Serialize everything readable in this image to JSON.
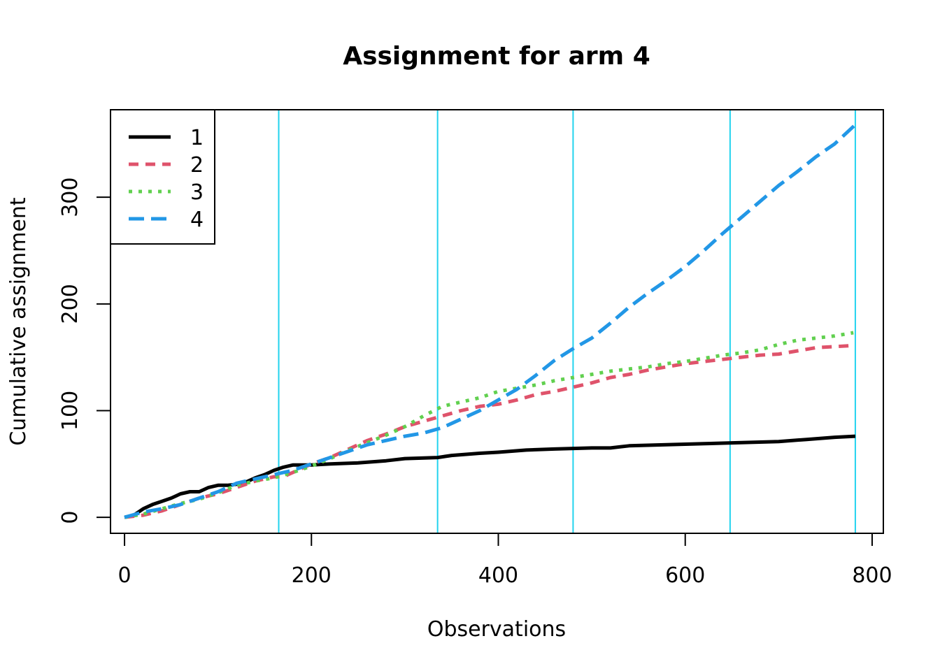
{
  "chart_data": {
    "type": "line",
    "title": "Assignment for arm 4",
    "xlabel": "Observations",
    "ylabel": "Cumulative assignment",
    "xlim": [
      -15,
      812
    ],
    "ylim": [
      -15,
      382
    ],
    "x_ticks": [
      0,
      200,
      400,
      600,
      800
    ],
    "y_ticks": [
      0,
      100,
      200,
      300
    ],
    "x_tick_labels": [
      "0",
      "200",
      "400",
      "600",
      "800"
    ],
    "y_tick_labels": [
      "0",
      "100",
      "200",
      "300"
    ],
    "grid": false,
    "legend_position": "top-left",
    "vlines": {
      "x": [
        165,
        335,
        480,
        648,
        782
      ],
      "color": "#22D3EE"
    },
    "series": [
      {
        "name": "1",
        "color": "#000000",
        "dash": "solid",
        "points": [
          [
            0,
            0
          ],
          [
            10,
            2
          ],
          [
            20,
            8
          ],
          [
            30,
            12
          ],
          [
            40,
            15
          ],
          [
            50,
            18
          ],
          [
            60,
            22
          ],
          [
            70,
            24
          ],
          [
            80,
            24
          ],
          [
            90,
            28
          ],
          [
            100,
            30
          ],
          [
            110,
            30
          ],
          [
            120,
            31
          ],
          [
            130,
            33
          ],
          [
            140,
            37
          ],
          [
            150,
            40
          ],
          [
            160,
            44
          ],
          [
            170,
            47
          ],
          [
            180,
            49
          ],
          [
            200,
            49
          ],
          [
            220,
            50
          ],
          [
            250,
            51
          ],
          [
            280,
            53
          ],
          [
            300,
            55
          ],
          [
            335,
            56
          ],
          [
            350,
            58
          ],
          [
            380,
            60
          ],
          [
            400,
            61
          ],
          [
            430,
            63
          ],
          [
            460,
            64
          ],
          [
            500,
            65
          ],
          [
            520,
            65
          ],
          [
            540,
            67
          ],
          [
            580,
            68
          ],
          [
            620,
            69
          ],
          [
            660,
            70
          ],
          [
            700,
            71
          ],
          [
            730,
            73
          ],
          [
            760,
            75
          ],
          [
            782,
            76
          ]
        ]
      },
      {
        "name": "2",
        "color": "#DF536B",
        "dash": "dashed",
        "points": [
          [
            0,
            0
          ],
          [
            20,
            2
          ],
          [
            40,
            6
          ],
          [
            60,
            12
          ],
          [
            80,
            18
          ],
          [
            100,
            22
          ],
          [
            120,
            28
          ],
          [
            140,
            34
          ],
          [
            160,
            38
          ],
          [
            170,
            38
          ],
          [
            180,
            42
          ],
          [
            200,
            50
          ],
          [
            220,
            56
          ],
          [
            240,
            64
          ],
          [
            260,
            72
          ],
          [
            280,
            78
          ],
          [
            300,
            85
          ],
          [
            320,
            90
          ],
          [
            340,
            95
          ],
          [
            360,
            100
          ],
          [
            380,
            104
          ],
          [
            400,
            106
          ],
          [
            420,
            110
          ],
          [
            440,
            115
          ],
          [
            460,
            118
          ],
          [
            480,
            122
          ],
          [
            500,
            126
          ],
          [
            520,
            131
          ],
          [
            540,
            134
          ],
          [
            560,
            138
          ],
          [
            580,
            141
          ],
          [
            600,
            144
          ],
          [
            620,
            146
          ],
          [
            640,
            148
          ],
          [
            660,
            150
          ],
          [
            680,
            152
          ],
          [
            700,
            153
          ],
          [
            720,
            156
          ],
          [
            740,
            159
          ],
          [
            760,
            160
          ],
          [
            780,
            161
          ]
        ]
      },
      {
        "name": "3",
        "color": "#61D04F",
        "dash": "dotted",
        "points": [
          [
            0,
            0
          ],
          [
            20,
            3
          ],
          [
            40,
            8
          ],
          [
            60,
            13
          ],
          [
            80,
            17
          ],
          [
            100,
            23
          ],
          [
            120,
            30
          ],
          [
            140,
            34
          ],
          [
            160,
            37
          ],
          [
            180,
            42
          ],
          [
            200,
            48
          ],
          [
            220,
            55
          ],
          [
            240,
            63
          ],
          [
            260,
            70
          ],
          [
            280,
            77
          ],
          [
            300,
            85
          ],
          [
            320,
            95
          ],
          [
            340,
            104
          ],
          [
            360,
            108
          ],
          [
            380,
            112
          ],
          [
            400,
            118
          ],
          [
            420,
            121
          ],
          [
            440,
            124
          ],
          [
            460,
            128
          ],
          [
            480,
            131
          ],
          [
            500,
            134
          ],
          [
            520,
            137
          ],
          [
            540,
            139
          ],
          [
            560,
            141
          ],
          [
            580,
            144
          ],
          [
            600,
            146
          ],
          [
            620,
            149
          ],
          [
            640,
            152
          ],
          [
            660,
            154
          ],
          [
            680,
            157
          ],
          [
            700,
            162
          ],
          [
            720,
            166
          ],
          [
            740,
            168
          ],
          [
            760,
            170
          ],
          [
            780,
            173
          ]
        ]
      },
      {
        "name": "4",
        "color": "#2297E6",
        "dash": "longdash",
        "points": [
          [
            0,
            0
          ],
          [
            20,
            5
          ],
          [
            40,
            8
          ],
          [
            60,
            12
          ],
          [
            80,
            18
          ],
          [
            100,
            24
          ],
          [
            120,
            32
          ],
          [
            140,
            36
          ],
          [
            160,
            40
          ],
          [
            180,
            44
          ],
          [
            200,
            50
          ],
          [
            220,
            56
          ],
          [
            240,
            62
          ],
          [
            260,
            68
          ],
          [
            280,
            72
          ],
          [
            300,
            76
          ],
          [
            320,
            79
          ],
          [
            340,
            84
          ],
          [
            360,
            92
          ],
          [
            380,
            100
          ],
          [
            400,
            110
          ],
          [
            420,
            120
          ],
          [
            440,
            133
          ],
          [
            460,
            147
          ],
          [
            480,
            158
          ],
          [
            500,
            168
          ],
          [
            520,
            182
          ],
          [
            540,
            197
          ],
          [
            560,
            210
          ],
          [
            580,
            222
          ],
          [
            600,
            235
          ],
          [
            620,
            250
          ],
          [
            640,
            266
          ],
          [
            660,
            281
          ],
          [
            680,
            296
          ],
          [
            700,
            311
          ],
          [
            720,
            324
          ],
          [
            740,
            338
          ],
          [
            760,
            350
          ],
          [
            782,
            368
          ]
        ]
      }
    ]
  }
}
